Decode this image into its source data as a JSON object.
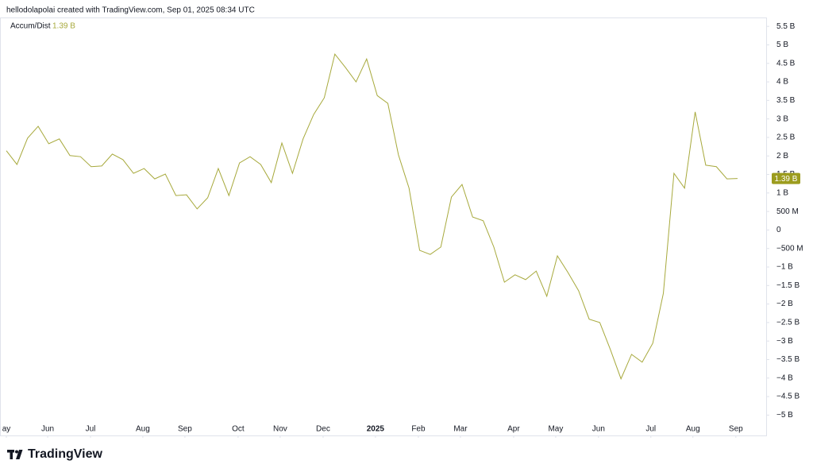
{
  "chart_data": {
    "type": "line",
    "attribution": "hellodolapolai created with TradingView.com, Sep 01, 2025 08:34 UTC",
    "brand": "TradingView",
    "series": [
      {
        "name": "Accum/Dist",
        "color": "#a7a93c",
        "value_label": "1.39 B",
        "values": [
          2.14,
          1.77,
          2.48,
          2.8,
          2.33,
          2.46,
          2.01,
          1.98,
          1.71,
          1.73,
          2.05,
          1.9,
          1.53,
          1.66,
          1.38,
          1.51,
          0.93,
          0.95,
          0.57,
          0.87,
          1.66,
          0.93,
          1.81,
          1.98,
          1.77,
          1.28,
          2.35,
          1.53,
          2.46,
          3.12,
          3.57,
          4.75,
          4.39,
          4.0,
          4.62,
          3.63,
          3.42,
          2.03,
          1.13,
          -0.55,
          -0.66,
          -0.46,
          0.89,
          1.23,
          0.35,
          0.25,
          -0.46,
          -1.41,
          -1.21,
          -1.34,
          -1.11,
          -1.79,
          -0.7,
          -1.15,
          -1.64,
          -2.41,
          -2.5,
          -3.23,
          -4.02,
          -3.36,
          -3.57,
          -3.06,
          -1.71,
          1.53,
          1.13,
          3.19,
          1.75,
          1.71,
          1.38,
          1.39
        ]
      }
    ],
    "label_color": "#9c9c1e",
    "xlim": [
      -0.6,
      71.7
    ],
    "xticks": [
      {
        "value": 0,
        "label": "ay"
      },
      {
        "value": 3.9,
        "label": "Jun"
      },
      {
        "value": 7.94,
        "label": "Jul"
      },
      {
        "value": 12.88,
        "label": "Aug"
      },
      {
        "value": 16.85,
        "label": "Sep"
      },
      {
        "value": 21.87,
        "label": "Oct"
      },
      {
        "value": 25.84,
        "label": "Nov"
      },
      {
        "value": 29.89,
        "label": "Dec"
      },
      {
        "value": 34.83,
        "label": "2025"
      },
      {
        "value": 38.88,
        "label": "Feb"
      },
      {
        "value": 42.85,
        "label": "Mar"
      },
      {
        "value": 47.87,
        "label": "Apr"
      },
      {
        "value": 51.84,
        "label": "May"
      },
      {
        "value": 55.88,
        "label": "Jun"
      },
      {
        "value": 60.82,
        "label": "Jul"
      },
      {
        "value": 64.79,
        "label": "Aug"
      },
      {
        "value": 68.84,
        "label": "Sep"
      }
    ],
    "ylim": [
      -5.55,
      5.74
    ],
    "yticks": [
      {
        "value": 5.5,
        "label": "5.5 B"
      },
      {
        "value": 5,
        "label": "5 B"
      },
      {
        "value": 4.5,
        "label": "4.5 B"
      },
      {
        "value": 4,
        "label": "4 B"
      },
      {
        "value": 3.5,
        "label": "3.5 B"
      },
      {
        "value": 3,
        "label": "3 B"
      },
      {
        "value": 2.5,
        "label": "2.5 B"
      },
      {
        "value": 2,
        "label": "2 B"
      },
      {
        "value": 1.5,
        "label": "1.5 B"
      },
      {
        "value": 1,
        "label": "1 B"
      },
      {
        "value": 0.5,
        "label": "500 M"
      },
      0,
      {
        "value": -0.5,
        "label": "−500 M"
      },
      {
        "value": -1,
        "label": "−1 B"
      },
      {
        "value": -1.5,
        "label": "−1.5 B"
      },
      {
        "value": -2,
        "label": "−2 B"
      },
      {
        "value": -2.5,
        "label": "−2.5 B"
      },
      {
        "value": -3,
        "label": "−3 B"
      },
      {
        "value": -3.5,
        "label": "−3.5 B"
      },
      {
        "value": -4,
        "label": "−4 B"
      },
      {
        "value": -4.5,
        "label": "−4.5 B"
      },
      {
        "value": -5,
        "label": "−5 B"
      }
    ],
    "grid": false
  }
}
